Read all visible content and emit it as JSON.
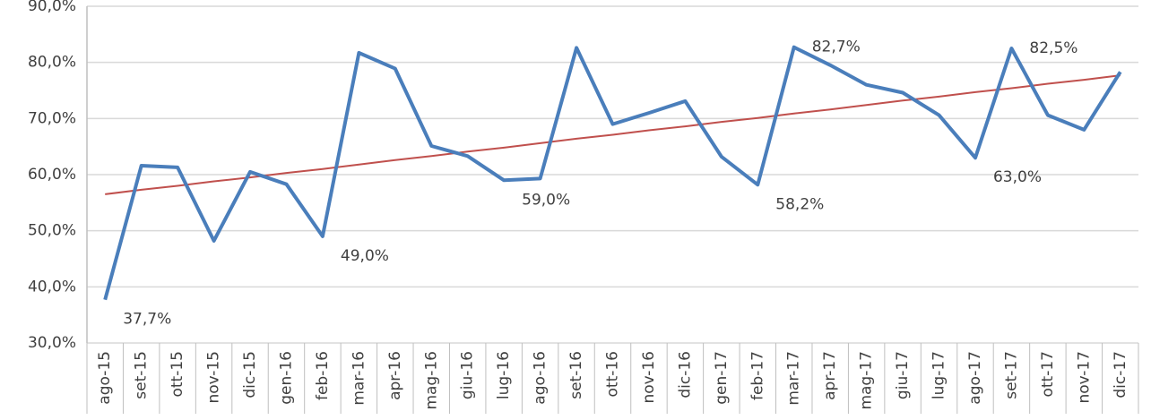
{
  "chart_data": {
    "type": "line",
    "categories": [
      "ago-15",
      "set-15",
      "ott-15",
      "nov-15",
      "dic-15",
      "gen-16",
      "feb-16",
      "mar-16",
      "apr-16",
      "mag-16",
      "giu-16",
      "lug-16",
      "ago-16",
      "set-16",
      "ott-16",
      "nov-16",
      "dic-16",
      "gen-17",
      "feb-17",
      "mar-17",
      "apr-17",
      "mag-17",
      "giu-17",
      "lug-17",
      "ago-17",
      "set-17",
      "ott-17",
      "nov-17",
      "dic-17"
    ],
    "series": [
      {
        "color": "#4a7ebb",
        "values": [
          37.7,
          61.6,
          61.3,
          48.2,
          60.5,
          58.3,
          49.0,
          81.7,
          78.9,
          65.1,
          63.3,
          59.0,
          59.3,
          82.6,
          69.0,
          71.0,
          73.1,
          63.2,
          58.2,
          82.7,
          79.5,
          76.0,
          74.6,
          70.6,
          63.0,
          82.5,
          70.6,
          68.0,
          78.3
        ],
        "value_labels": [
          "37,7%",
          null,
          null,
          null,
          null,
          null,
          "49,0%",
          null,
          null,
          null,
          null,
          "59,0%",
          null,
          null,
          null,
          null,
          null,
          null,
          "58,2%",
          "82,7%",
          null,
          null,
          null,
          null,
          "63,0%",
          "82,5%",
          null,
          null,
          null
        ]
      },
      {
        "color": "#c0504d",
        "values": [
          56.5,
          57.3,
          58.0,
          58.8,
          59.5,
          60.3,
          61.0,
          61.8,
          62.6,
          63.3,
          64.1,
          64.8,
          65.6,
          66.4,
          67.1,
          67.9,
          68.6,
          69.4,
          70.1,
          70.9,
          71.6,
          72.4,
          73.2,
          73.9,
          74.7,
          75.4,
          76.2,
          76.9,
          77.7
        ]
      }
    ],
    "ylim": [
      30,
      90
    ],
    "yticks": [
      {
        "value": 30,
        "label": "30,0%"
      },
      {
        "value": 40,
        "label": "40,0%"
      },
      {
        "value": 50,
        "label": "50,0%"
      },
      {
        "value": 60,
        "label": "60,0%"
      },
      {
        "value": 70,
        "label": "70,0%"
      },
      {
        "value": 80,
        "label": "80,0%"
      },
      {
        "value": 90,
        "label": "90,0%"
      }
    ],
    "grid": true
  }
}
